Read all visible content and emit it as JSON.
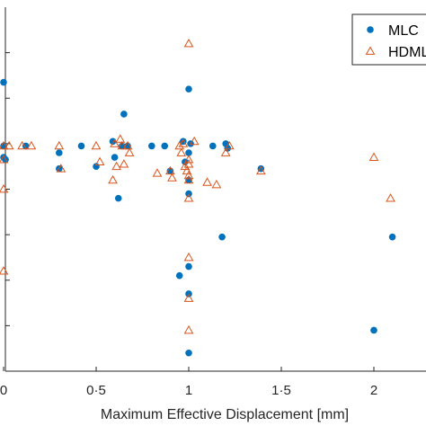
{
  "chart_data": {
    "type": "scatter",
    "title": "",
    "xlabel": "Maximum Effective Displacement [mm]",
    "ylabel": "",
    "xlim": [
      0,
      2.25
    ],
    "ylim": [
      0,
      8
    ],
    "grid": false,
    "legend_placement": "top-right",
    "x_ticks": [
      {
        "value": 0,
        "label": "0"
      },
      {
        "value": 0.5,
        "label": "0·5"
      },
      {
        "value": 1,
        "label": "1"
      },
      {
        "value": 1.5,
        "label": "1·5"
      },
      {
        "value": 2,
        "label": "2"
      }
    ],
    "series": [
      {
        "name": "MLC",
        "marker": "circle",
        "color": "#0072BD",
        "points": [
          {
            "x": 0.0,
            "y": 6.35
          },
          {
            "x": 0.0,
            "y": 4.95
          },
          {
            "x": 0.0,
            "y": 4.7
          },
          {
            "x": 0.01,
            "y": 4.65
          },
          {
            "x": 0.12,
            "y": 4.95
          },
          {
            "x": 0.3,
            "y": 4.8
          },
          {
            "x": 0.3,
            "y": 4.45
          },
          {
            "x": 0.42,
            "y": 4.95
          },
          {
            "x": 0.5,
            "y": 4.5
          },
          {
            "x": 0.59,
            "y": 5.05
          },
          {
            "x": 0.6,
            "y": 4.7
          },
          {
            "x": 0.62,
            "y": 3.8
          },
          {
            "x": 0.64,
            "y": 4.95
          },
          {
            "x": 0.65,
            "y": 5.65
          },
          {
            "x": 0.67,
            "y": 4.95
          },
          {
            "x": 0.8,
            "y": 4.95
          },
          {
            "x": 0.87,
            "y": 4.95
          },
          {
            "x": 0.9,
            "y": 4.4
          },
          {
            "x": 0.95,
            "y": 2.1
          },
          {
            "x": 0.97,
            "y": 5.05
          },
          {
            "x": 0.98,
            "y": 4.6
          },
          {
            "x": 1.0,
            "y": 6.2
          },
          {
            "x": 1.0,
            "y": 4.8
          },
          {
            "x": 1.0,
            "y": 4.2
          },
          {
            "x": 1.0,
            "y": 3.9
          },
          {
            "x": 1.0,
            "y": 2.3
          },
          {
            "x": 1.0,
            "y": 1.7
          },
          {
            "x": 1.0,
            "y": 0.4
          },
          {
            "x": 1.01,
            "y": 5.0
          },
          {
            "x": 1.13,
            "y": 4.95
          },
          {
            "x": 1.18,
            "y": 2.95
          },
          {
            "x": 1.2,
            "y": 5.0
          },
          {
            "x": 1.21,
            "y": 4.9
          },
          {
            "x": 1.39,
            "y": 4.45
          },
          {
            "x": 2.0,
            "y": 0.9
          },
          {
            "x": 2.1,
            "y": 2.95
          }
        ]
      },
      {
        "name": "HDMLC",
        "marker": "triangle",
        "color": "#D95319",
        "points": [
          {
            "x": 0.0,
            "y": 4.95
          },
          {
            "x": 0.0,
            "y": 4.65
          },
          {
            "x": 0.0,
            "y": 4.0
          },
          {
            "x": 0.0,
            "y": 2.2
          },
          {
            "x": 0.03,
            "y": 4.95
          },
          {
            "x": 0.1,
            "y": 4.95
          },
          {
            "x": 0.15,
            "y": 4.95
          },
          {
            "x": 0.3,
            "y": 4.95
          },
          {
            "x": 0.31,
            "y": 4.45
          },
          {
            "x": 0.5,
            "y": 4.95
          },
          {
            "x": 0.52,
            "y": 4.6
          },
          {
            "x": 0.59,
            "y": 4.2
          },
          {
            "x": 0.6,
            "y": 5.0
          },
          {
            "x": 0.61,
            "y": 4.5
          },
          {
            "x": 0.63,
            "y": 5.1
          },
          {
            "x": 0.64,
            "y": 4.95
          },
          {
            "x": 0.65,
            "y": 4.55
          },
          {
            "x": 0.67,
            "y": 4.95
          },
          {
            "x": 0.68,
            "y": 4.8
          },
          {
            "x": 0.83,
            "y": 4.35
          },
          {
            "x": 0.9,
            "y": 4.4
          },
          {
            "x": 0.91,
            "y": 4.25
          },
          {
            "x": 0.95,
            "y": 4.95
          },
          {
            "x": 0.96,
            "y": 4.8
          },
          {
            "x": 0.97,
            "y": 5.0
          },
          {
            "x": 0.98,
            "y": 4.5
          },
          {
            "x": 0.99,
            "y": 4.4
          },
          {
            "x": 1.0,
            "y": 7.2
          },
          {
            "x": 1.0,
            "y": 4.65
          },
          {
            "x": 1.0,
            "y": 4.55
          },
          {
            "x": 1.0,
            "y": 4.3
          },
          {
            "x": 1.0,
            "y": 4.2
          },
          {
            "x": 1.0,
            "y": 3.8
          },
          {
            "x": 1.0,
            "y": 2.5
          },
          {
            "x": 1.0,
            "y": 1.6
          },
          {
            "x": 1.0,
            "y": 0.9
          },
          {
            "x": 1.03,
            "y": 5.05
          },
          {
            "x": 1.1,
            "y": 4.15
          },
          {
            "x": 1.15,
            "y": 4.1
          },
          {
            "x": 1.2,
            "y": 4.8
          },
          {
            "x": 1.22,
            "y": 4.95
          },
          {
            "x": 1.39,
            "y": 4.4
          },
          {
            "x": 2.0,
            "y": 4.7
          },
          {
            "x": 2.09,
            "y": 3.8
          }
        ]
      }
    ]
  }
}
